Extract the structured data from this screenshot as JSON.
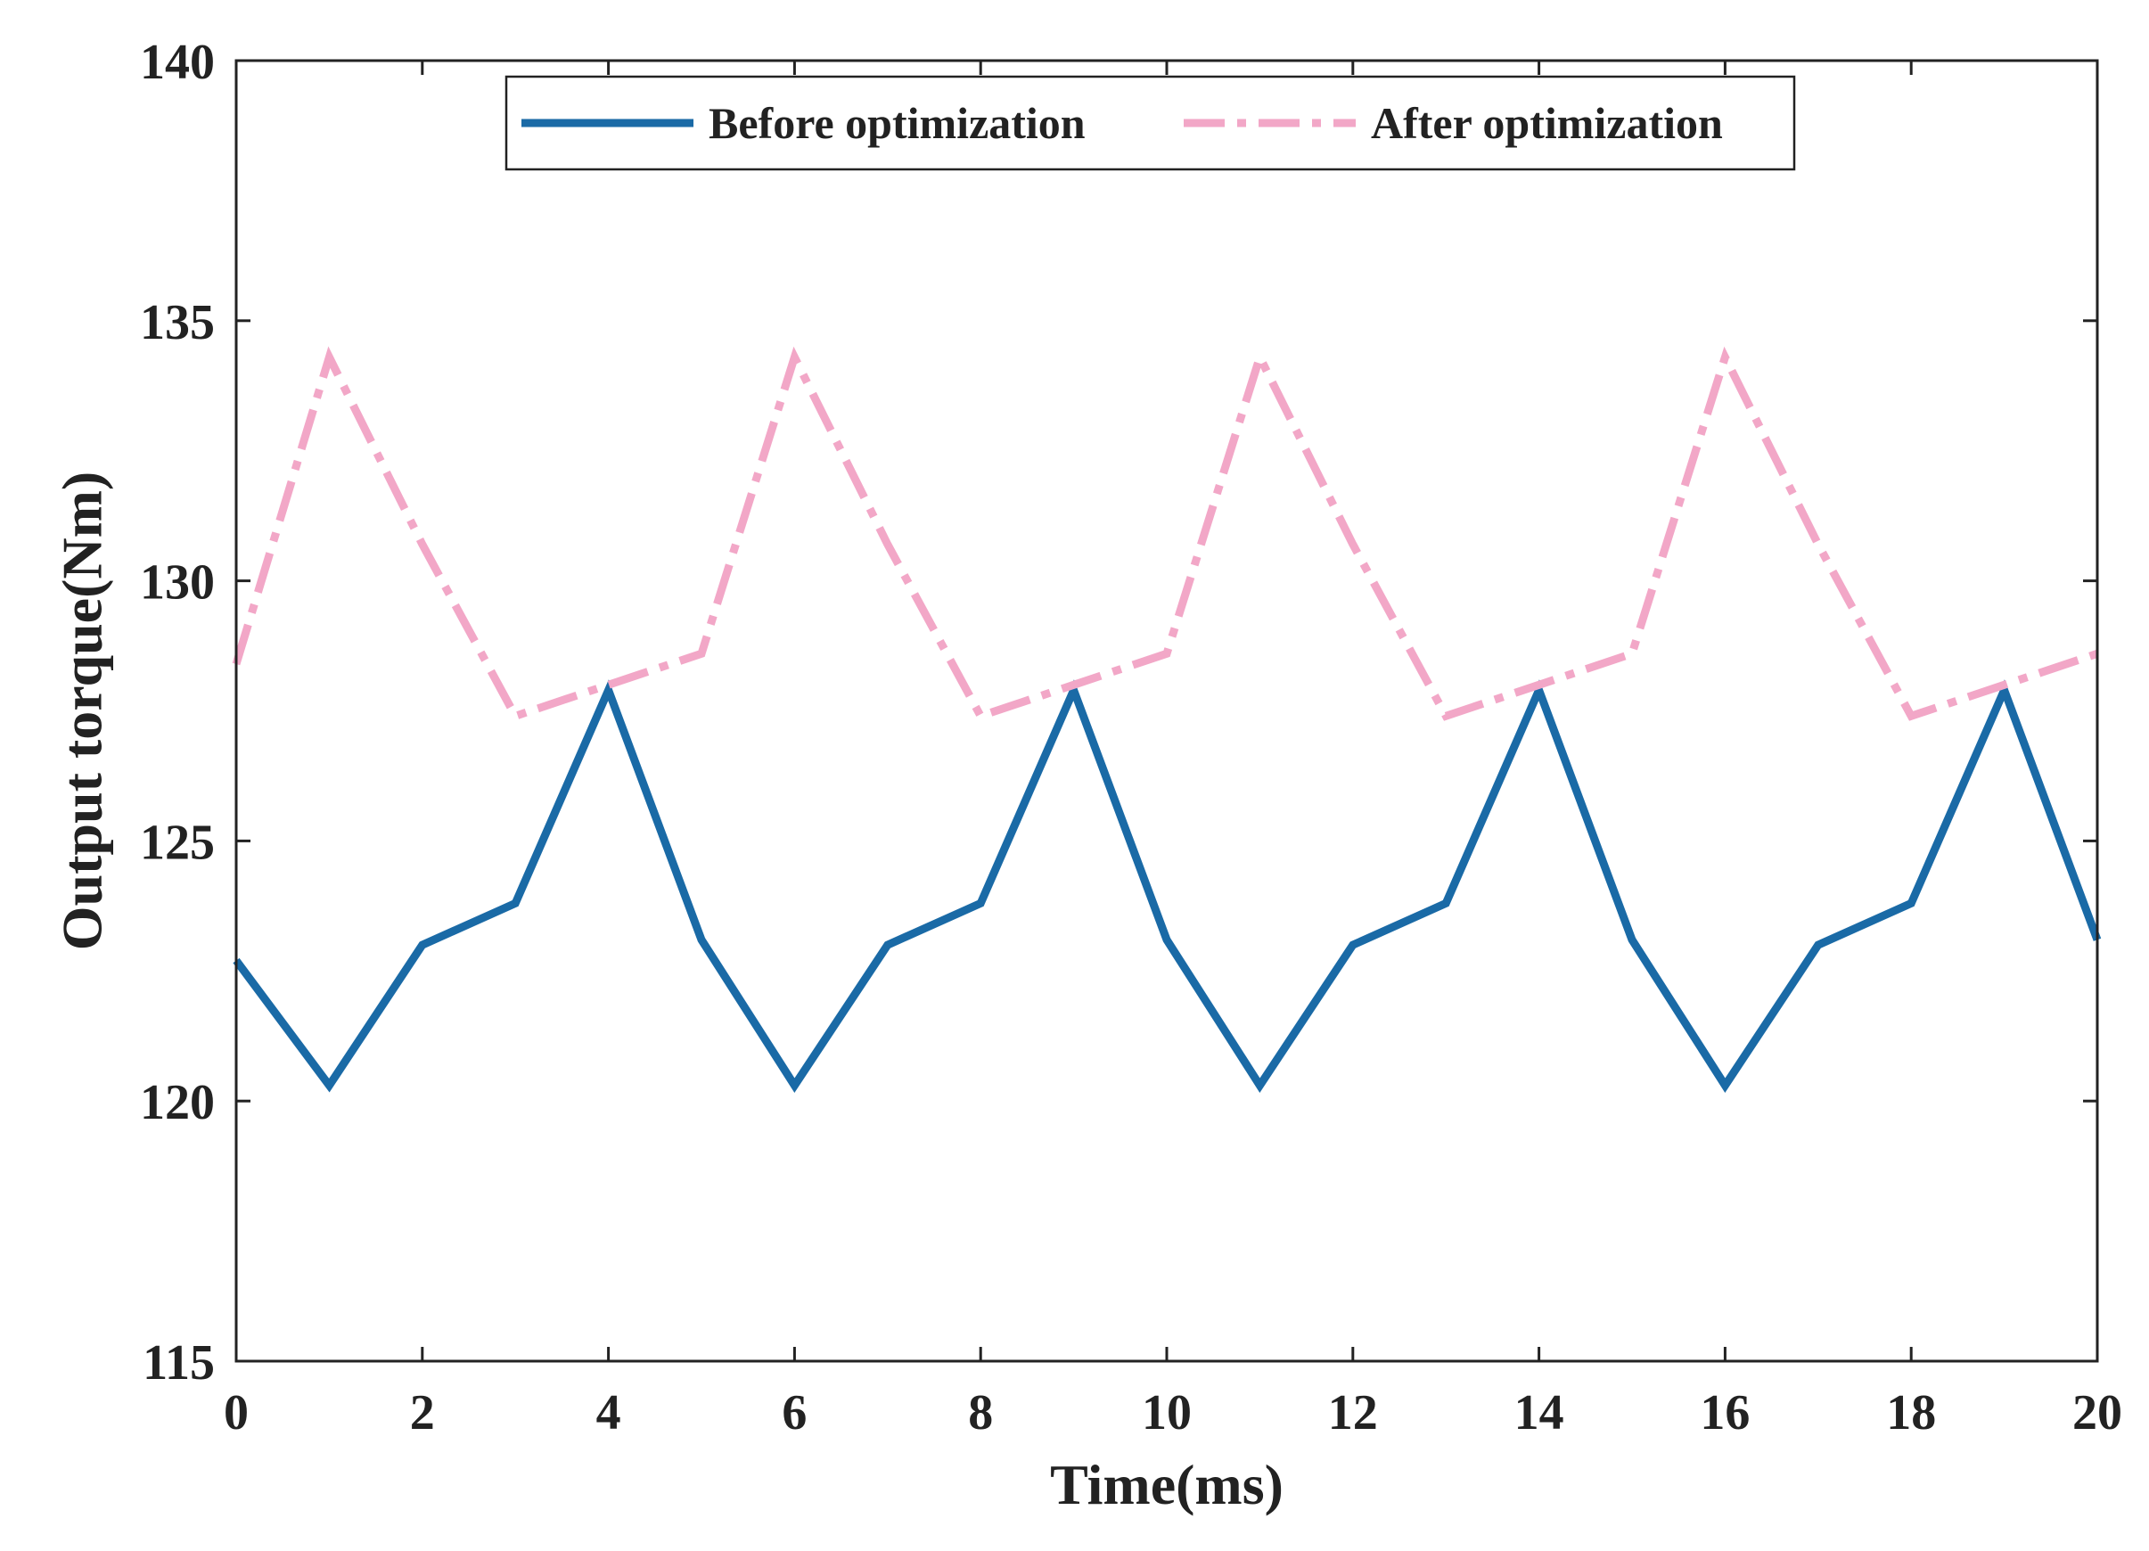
{
  "chart_data": {
    "type": "line",
    "title": "",
    "xlabel": "Time(ms)",
    "ylabel": "Output torque(Nm)",
    "xlim": [
      0,
      20
    ],
    "ylim": [
      115,
      140
    ],
    "xticks": [
      0,
      2,
      4,
      6,
      8,
      10,
      12,
      14,
      16,
      18,
      20
    ],
    "yticks": [
      115,
      120,
      125,
      130,
      135,
      140
    ],
    "grid": false,
    "legend_position": "top-center",
    "x": [
      0,
      1,
      2,
      3,
      4,
      5,
      6,
      7,
      8,
      9,
      10,
      11,
      12,
      13,
      14,
      15,
      16,
      17,
      18,
      19,
      20
    ],
    "series": [
      {
        "name": "Before optimization",
        "color": "#1a6aa6",
        "style": "solid",
        "values": [
          122.7,
          120.3,
          123.0,
          123.8,
          127.9,
          123.1,
          120.3,
          123.0,
          123.8,
          127.9,
          123.1,
          120.3,
          123.0,
          123.8,
          127.9,
          123.1,
          120.3,
          123.0,
          123.8,
          127.9,
          123.1
        ]
      },
      {
        "name": "After optimization",
        "color": "#f2a7c7",
        "style": "dashdot",
        "values": [
          128.4,
          134.3,
          130.7,
          127.4,
          128.0,
          128.6,
          134.3,
          130.7,
          127.4,
          128.0,
          128.6,
          134.3,
          130.7,
          127.4,
          128.0,
          128.6,
          134.3,
          130.7,
          127.4,
          128.0,
          128.6
        ]
      }
    ]
  }
}
